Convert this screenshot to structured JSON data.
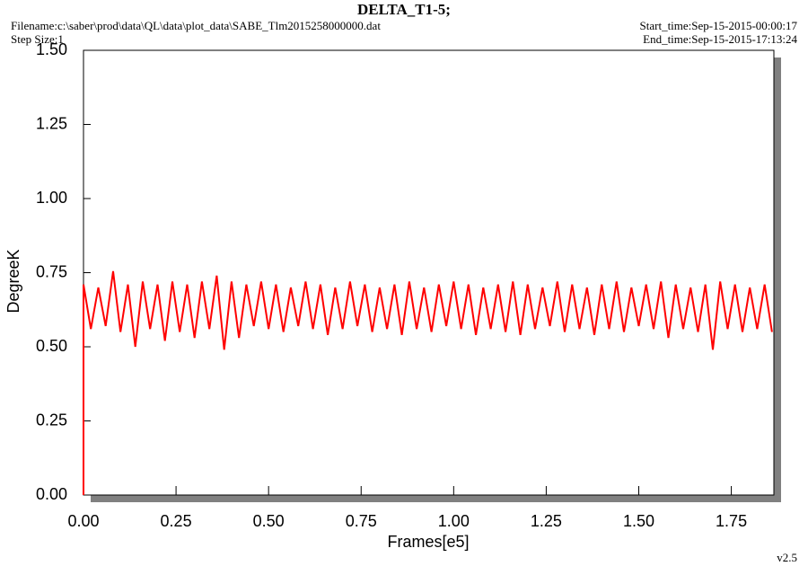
{
  "chart_data": {
    "type": "line",
    "title": "DELTA_T1-5;",
    "filename": "Filename:c:\\saber\\prod\\data\\QL\\data\\plot_data\\SABE_Tlm2015258000000.dat",
    "step_size": "Step Size:1",
    "start_time": "Start_time:Sep-15-2015-00:00:17",
    "end_time": "End_time:Sep-15-2015-17:13:24",
    "version": "v2.5",
    "xlabel": "Frames[e5]",
    "ylabel": "DegreeK",
    "xlim": [
      0,
      1.865
    ],
    "ylim": [
      0,
      1.5
    ],
    "xticks": [
      {
        "value": 0,
        "label": "0.00"
      },
      {
        "value": 0.25,
        "label": "0.25"
      },
      {
        "value": 0.5,
        "label": "0.50"
      },
      {
        "value": 0.75,
        "label": "0.75"
      },
      {
        "value": 1,
        "label": "1.00"
      },
      {
        "value": 1.25,
        "label": "1.25"
      },
      {
        "value": 1.5,
        "label": "1.50"
      },
      {
        "value": 1.75,
        "label": "1.75"
      }
    ],
    "yticks": [
      {
        "value": 0,
        "label": "0.00"
      },
      {
        "value": 0.25,
        "label": "0.25"
      },
      {
        "value": 0.5,
        "label": "0.50"
      },
      {
        "value": 0.75,
        "label": "0.75"
      },
      {
        "value": 1,
        "label": "1.00"
      },
      {
        "value": 1.25,
        "label": "1.25"
      },
      {
        "value": 1.5,
        "label": "1.50"
      }
    ],
    "x": [
      0,
      0,
      0.02,
      0.04,
      0.06,
      0.08,
      0.1,
      0.12,
      0.14,
      0.16,
      0.18,
      0.2,
      0.22,
      0.24,
      0.26,
      0.28,
      0.3,
      0.32,
      0.34,
      0.36,
      0.38,
      0.4,
      0.42,
      0.44,
      0.46,
      0.48,
      0.5,
      0.52,
      0.54,
      0.56,
      0.58,
      0.6,
      0.62,
      0.64,
      0.66,
      0.68,
      0.7,
      0.72,
      0.74,
      0.76,
      0.78,
      0.8,
      0.82,
      0.84,
      0.86,
      0.88,
      0.9,
      0.92,
      0.94,
      0.96,
      0.98,
      1,
      1.02,
      1.04,
      1.06,
      1.08,
      1.1,
      1.12,
      1.14,
      1.16,
      1.18,
      1.2,
      1.22,
      1.24,
      1.26,
      1.28,
      1.3,
      1.32,
      1.34,
      1.36,
      1.38,
      1.4,
      1.42,
      1.44,
      1.46,
      1.48,
      1.5,
      1.52,
      1.54,
      1.56,
      1.58,
      1.6,
      1.62,
      1.64,
      1.66,
      1.68,
      1.7,
      1.72,
      1.74,
      1.76,
      1.78,
      1.8,
      1.82,
      1.84,
      1.86
    ],
    "series": [
      {
        "color": "#ff0000",
        "values": [
          0,
          0.71,
          0.56,
          0.7,
          0.57,
          0.755,
          0.55,
          0.71,
          0.5,
          0.72,
          0.56,
          0.71,
          0.52,
          0.72,
          0.55,
          0.71,
          0.53,
          0.72,
          0.56,
          0.74,
          0.49,
          0.72,
          0.53,
          0.71,
          0.57,
          0.72,
          0.56,
          0.71,
          0.55,
          0.7,
          0.57,
          0.72,
          0.56,
          0.71,
          0.54,
          0.7,
          0.56,
          0.72,
          0.57,
          0.71,
          0.55,
          0.7,
          0.56,
          0.71,
          0.54,
          0.72,
          0.56,
          0.7,
          0.55,
          0.71,
          0.57,
          0.72,
          0.56,
          0.71,
          0.54,
          0.7,
          0.56,
          0.71,
          0.55,
          0.72,
          0.54,
          0.71,
          0.56,
          0.7,
          0.57,
          0.72,
          0.55,
          0.71,
          0.56,
          0.7,
          0.54,
          0.71,
          0.56,
          0.72,
          0.55,
          0.7,
          0.57,
          0.71,
          0.56,
          0.72,
          0.53,
          0.71,
          0.56,
          0.7,
          0.55,
          0.71,
          0.49,
          0.72,
          0.56,
          0.71,
          0.55,
          0.7,
          0.56,
          0.71,
          0.55
        ]
      }
    ]
  }
}
